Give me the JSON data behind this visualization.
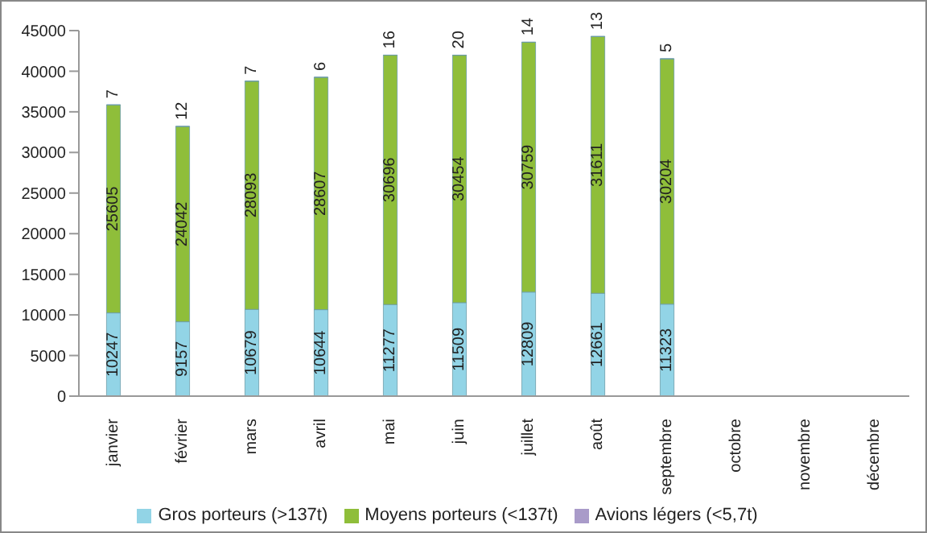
{
  "chart_data": {
    "type": "bar",
    "stacked": true,
    "categories": [
      "janvier",
      "février",
      "mars",
      "avril",
      "mai",
      "juin",
      "juillet",
      "août",
      "septembre",
      "octobre",
      "novembre",
      "décembre"
    ],
    "series": [
      {
        "name": "Gros porteurs (>137t)",
        "color": "#92d4e6",
        "values": [
          10247,
          9157,
          10679,
          10644,
          11277,
          11509,
          12809,
          12661,
          11323,
          null,
          null,
          null
        ]
      },
      {
        "name": "Moyens porteurs (<137t)",
        "color": "#8fbe3a",
        "values": [
          25605,
          24042,
          28093,
          28607,
          30696,
          30454,
          30759,
          31611,
          30204,
          null,
          null,
          null
        ]
      },
      {
        "name": "Avions légers (<5,7t)",
        "color": "#a99bc9",
        "values": [
          7,
          12,
          7,
          6,
          16,
          20,
          14,
          13,
          5,
          null,
          null,
          null
        ]
      }
    ],
    "ylim": [
      0,
      45000
    ],
    "yticks": [
      0,
      5000,
      10000,
      15000,
      20000,
      25000,
      30000,
      35000,
      40000,
      45000
    ],
    "grid": false,
    "legend": "bottom",
    "data_labels": true
  }
}
